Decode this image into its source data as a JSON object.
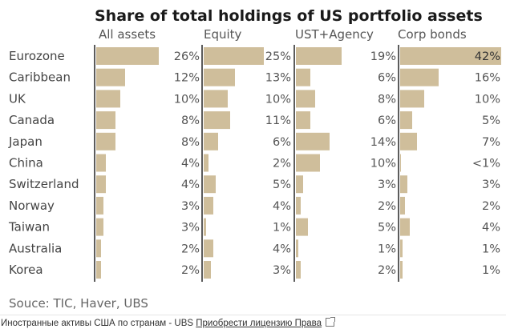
{
  "chart_data": {
    "type": "bar",
    "orientation": "horizontal",
    "title": "Share of total holdings of US portfolio assets",
    "categories": [
      "Eurozone",
      "Caribbean",
      "UK",
      "Canada",
      "Japan",
      "China",
      "Switzerland",
      "Norway",
      "Taiwan",
      "Australia",
      "Korea"
    ],
    "series": [
      {
        "name": "All assets",
        "values": [
          26,
          12,
          10,
          8,
          8,
          4,
          4,
          3,
          3,
          2,
          2
        ],
        "labels": [
          "26%",
          "12%",
          "10%",
          "8%",
          "8%",
          "4%",
          "4%",
          "3%",
          "3%",
          "2%",
          "2%"
        ]
      },
      {
        "name": "Equity",
        "values": [
          25,
          13,
          10,
          11,
          6,
          2,
          5,
          4,
          1,
          4,
          3
        ],
        "labels": [
          "25%",
          "13%",
          "10%",
          "11%",
          "6%",
          "2%",
          "5%",
          "4%",
          "1%",
          "4%",
          "3%"
        ]
      },
      {
        "name": "UST+Agency",
        "values": [
          19,
          6,
          8,
          6,
          14,
          10,
          3,
          2,
          5,
          1,
          2
        ],
        "labels": [
          "19%",
          "6%",
          "8%",
          "6%",
          "14%",
          "10%",
          "3%",
          "2%",
          "5%",
          "1%",
          "2%"
        ]
      },
      {
        "name": "Corp bonds",
        "values": [
          42,
          16,
          10,
          5,
          7,
          0.3,
          3,
          2,
          4,
          1,
          1
        ],
        "labels": [
          "42%",
          "16%",
          "10%",
          "5%",
          "7%",
          "<1%",
          "3%",
          "2%",
          "4%",
          "1%",
          "1%"
        ]
      }
    ],
    "bar_color": "#cfbe9b",
    "axis_color": "#333333",
    "xlabel": "",
    "ylabel": "",
    "grid": false,
    "legend": "none",
    "source": "Souce: TIC, Haver, UBS"
  },
  "caption": {
    "text": "Иностранные активы США по странам - UBS",
    "link_label": "Приобрести лицензию Права",
    "link_icon": "external-link-icon"
  }
}
